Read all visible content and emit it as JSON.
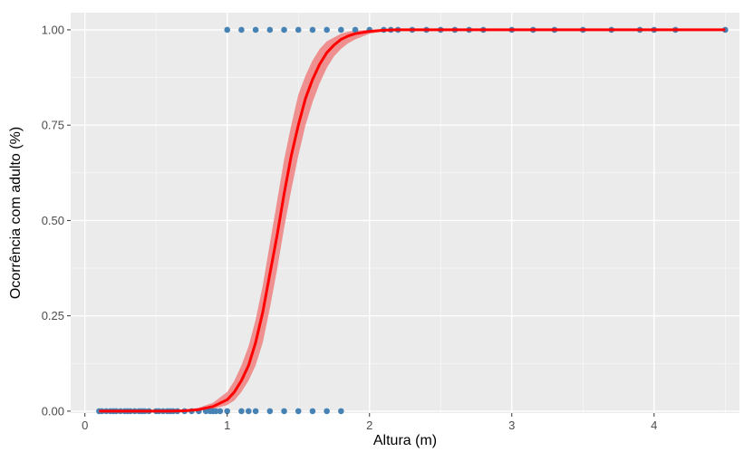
{
  "chart_data": {
    "type": "scatter",
    "xlabel": "Altura (m)",
    "ylabel": "Ocorrência com adulto (%)",
    "xlim": [
      -0.1,
      4.6
    ],
    "ylim": [
      -0.005,
      1.045
    ],
    "x_ticks": [
      0,
      1,
      2,
      3,
      4
    ],
    "x_tick_labels": [
      "0",
      "1",
      "2",
      "3",
      "4"
    ],
    "y_ticks": [
      0,
      0.25,
      0.5,
      0.75,
      1
    ],
    "y_tick_labels": [
      "0.00",
      "0.25",
      "0.50",
      "0.75",
      "1.00"
    ],
    "grid": true,
    "colors": {
      "panel": "#ebebeb",
      "grid_major": "#ffffff",
      "points": "#4682b4",
      "fit_line": "#ff0000",
      "ribbon": "#f08080"
    },
    "points_y0": [
      0.1,
      0.12,
      0.15,
      0.18,
      0.2,
      0.22,
      0.25,
      0.28,
      0.3,
      0.32,
      0.35,
      0.38,
      0.4,
      0.42,
      0.45,
      0.5,
      0.52,
      0.55,
      0.58,
      0.6,
      0.62,
      0.65,
      0.7,
      0.75,
      0.8,
      0.85,
      0.88,
      0.9,
      0.92,
      0.95,
      1.0,
      1.1,
      1.15,
      1.2,
      1.3,
      1.4,
      1.5,
      1.6,
      1.7,
      1.8
    ],
    "points_y1": [
      1.0,
      1.1,
      1.2,
      1.3,
      1.4,
      1.5,
      1.6,
      1.7,
      1.8,
      1.9,
      2.0,
      2.1,
      2.15,
      2.2,
      2.3,
      2.4,
      2.5,
      2.6,
      2.7,
      2.8,
      3.0,
      3.15,
      3.3,
      3.5,
      3.7,
      3.9,
      4.0,
      4.15,
      4.5
    ],
    "fit_curve": {
      "x": [
        0.1,
        0.2,
        0.3,
        0.4,
        0.5,
        0.6,
        0.7,
        0.8,
        0.9,
        1.0,
        1.05,
        1.1,
        1.15,
        1.2,
        1.25,
        1.3,
        1.35,
        1.4,
        1.45,
        1.5,
        1.55,
        1.6,
        1.65,
        1.7,
        1.75,
        1.8,
        1.85,
        1.9,
        2.0,
        2.1,
        2.2,
        2.3,
        2.5,
        3.0,
        3.5,
        4.0,
        4.5
      ],
      "y": [
        0.0,
        0.0,
        0.0,
        0.0,
        0.0,
        0.0,
        0.001,
        0.004,
        0.012,
        0.03,
        0.05,
        0.08,
        0.12,
        0.18,
        0.26,
        0.36,
        0.46,
        0.57,
        0.67,
        0.75,
        0.82,
        0.87,
        0.91,
        0.94,
        0.96,
        0.975,
        0.984,
        0.99,
        0.996,
        0.999,
        1.0,
        1.0,
        1.0,
        1.0,
        1.0,
        1.0,
        1.0
      ],
      "lower": [
        0.0,
        0.0,
        0.0,
        0.0,
        0.0,
        0.0,
        0.0,
        0.002,
        0.006,
        0.016,
        0.028,
        0.05,
        0.08,
        0.12,
        0.18,
        0.27,
        0.37,
        0.48,
        0.58,
        0.67,
        0.75,
        0.81,
        0.86,
        0.9,
        0.93,
        0.95,
        0.965,
        0.975,
        0.99,
        0.996,
        0.999,
        1.0,
        1.0,
        1.0,
        1.0,
        1.0,
        1.0
      ],
      "upper": [
        0.0,
        0.0,
        0.0,
        0.0,
        0.0,
        0.0,
        0.003,
        0.009,
        0.022,
        0.05,
        0.08,
        0.12,
        0.17,
        0.24,
        0.33,
        0.44,
        0.55,
        0.66,
        0.75,
        0.83,
        0.88,
        0.92,
        0.95,
        0.97,
        0.98,
        0.99,
        0.995,
        0.998,
        1.0,
        1.0,
        1.0,
        1.0,
        1.0,
        1.0,
        1.0,
        1.0,
        1.0
      ]
    }
  }
}
